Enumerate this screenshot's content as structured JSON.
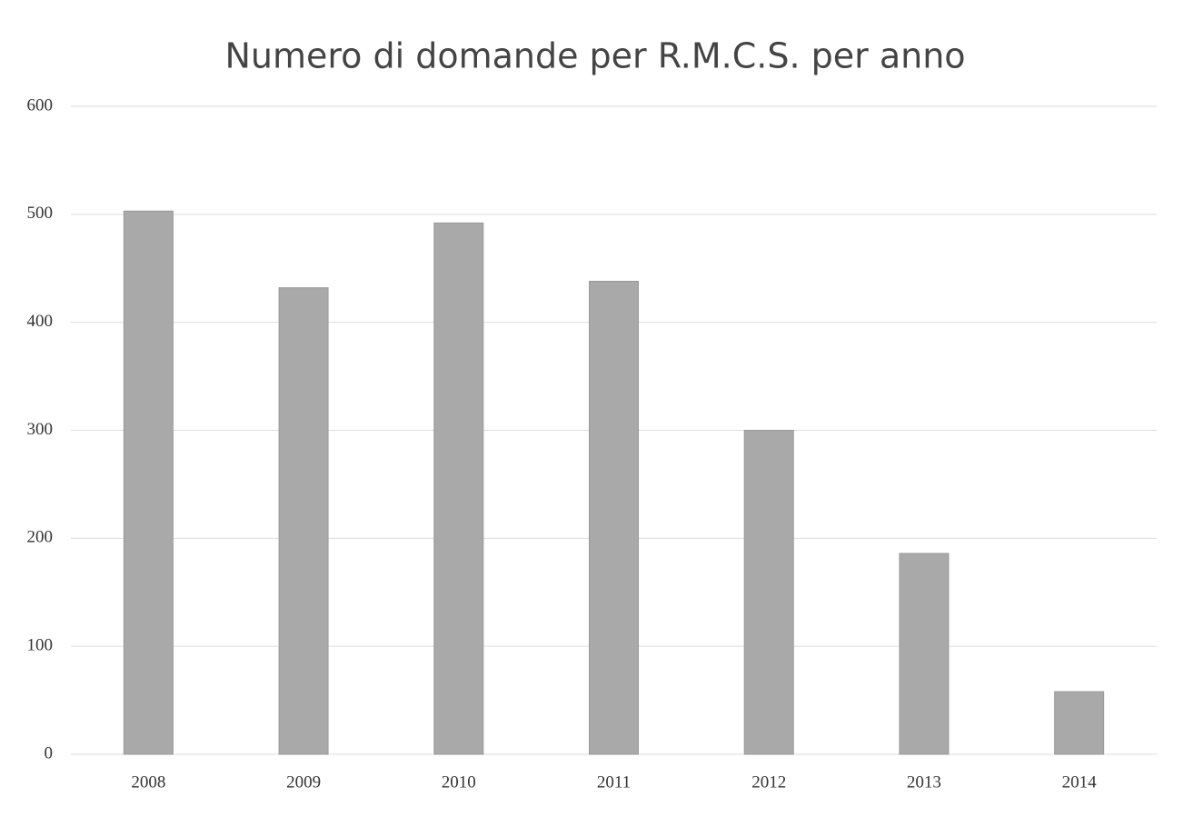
{
  "chart_data": {
    "type": "bar",
    "title": "Numero di domande per R.M.C.S. per anno",
    "categories": [
      "2008",
      "2009",
      "2010",
      "2011",
      "2012",
      "2013",
      "2014"
    ],
    "values": [
      503,
      432,
      492,
      438,
      300,
      186,
      58
    ],
    "color": "#a9a9a9",
    "ylim": [
      0,
      600
    ],
    "yticks": [
      0,
      100,
      200,
      300,
      400,
      500,
      600
    ],
    "grid": true
  }
}
